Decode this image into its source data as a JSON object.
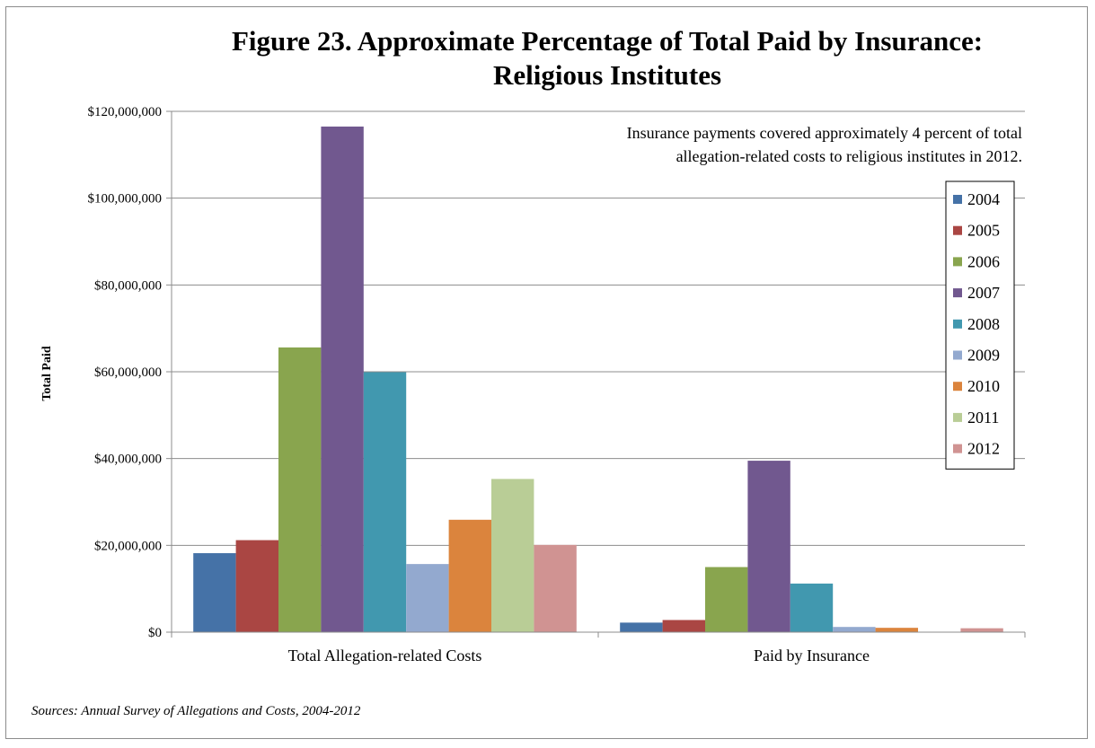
{
  "chart_data": {
    "type": "bar",
    "title": "Figure 23.  Approximate Percentage of Total Paid by Insurance: Religious Institutes",
    "title_lines": [
      "Figure 23.  Approximate Percentage of Total Paid by Insurance:",
      "Religious Institutes"
    ],
    "ylabel": "Total Paid",
    "xlabel": "",
    "ylim": [
      0,
      120000000
    ],
    "yticks": [
      "$0",
      "$20,000,000",
      "$40,000,000",
      "$60,000,000",
      "$80,000,000",
      "$100,000,000",
      "$120,000,000"
    ],
    "grid": true,
    "legend_position": "right",
    "categories": [
      "Total Allegation-related Costs",
      "Paid by Insurance"
    ],
    "series": [
      {
        "name": "2004",
        "color": "#4572a7",
        "values": [
          18200000,
          2200000
        ]
      },
      {
        "name": "2005",
        "color": "#aa4643",
        "values": [
          21200000,
          2800000
        ]
      },
      {
        "name": "2006",
        "color": "#89a54e",
        "values": [
          65600000,
          15000000
        ]
      },
      {
        "name": "2007",
        "color": "#71588f",
        "values": [
          116500000,
          39500000
        ]
      },
      {
        "name": "2008",
        "color": "#4198af",
        "values": [
          59900000,
          11200000
        ]
      },
      {
        "name": "2009",
        "color": "#93a9cf",
        "values": [
          15700000,
          1200000
        ]
      },
      {
        "name": "2010",
        "color": "#db843d",
        "values": [
          25900000,
          1000000
        ]
      },
      {
        "name": "2011",
        "color": "#b9cd96",
        "values": [
          35300000,
          0
        ]
      },
      {
        "name": "2012",
        "color": "#d09392",
        "values": [
          20100000,
          900000
        ]
      }
    ],
    "annotation": [
      "Insurance payments covered approximately 4 percent of total",
      "allegation-related costs to religious institutes in 2012."
    ]
  },
  "sources": "Sources:  Annual Survey of Allegations and Costs, 2004-2012"
}
